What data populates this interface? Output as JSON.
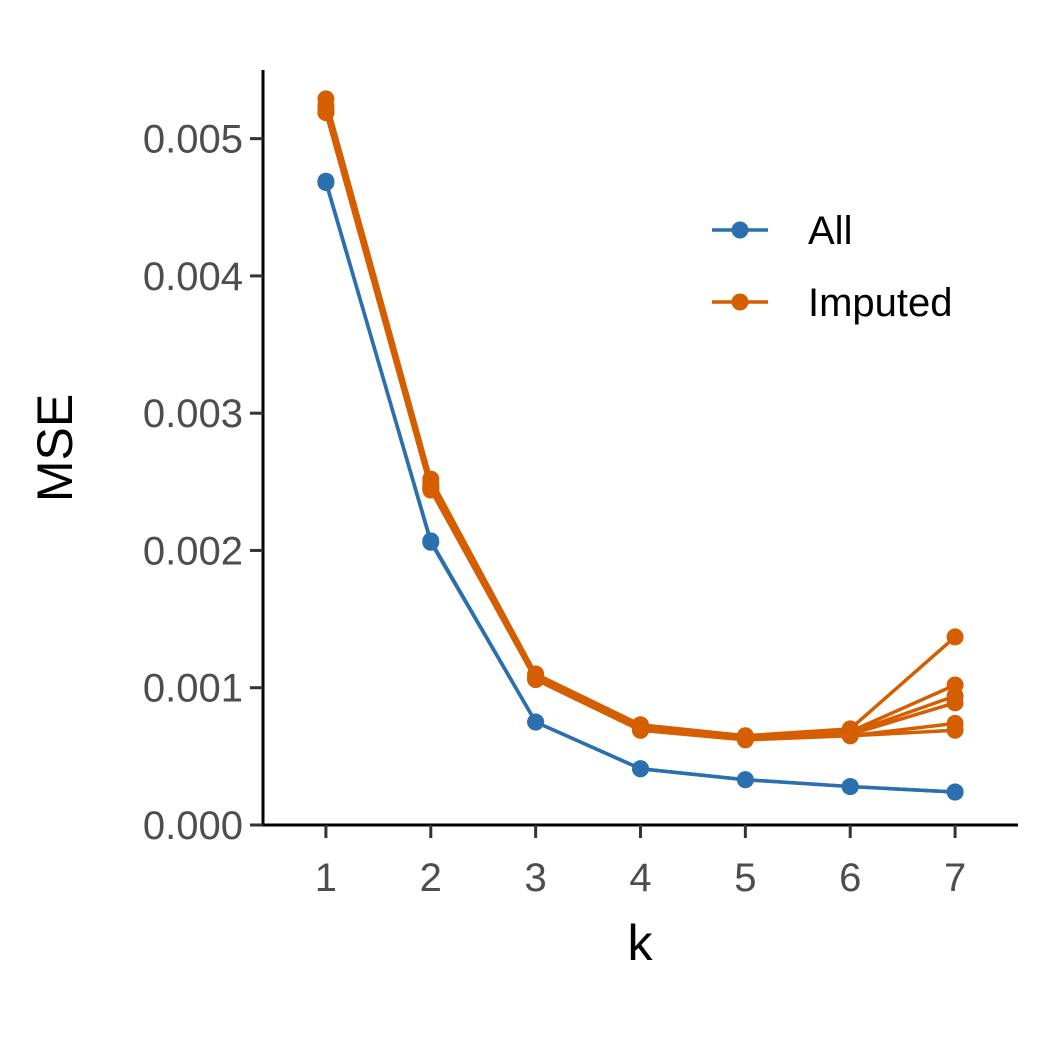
{
  "chart_data": {
    "type": "line",
    "xlabel": "k",
    "ylabel": "MSE",
    "x": [
      1,
      2,
      3,
      4,
      5,
      6,
      7
    ],
    "xlim": [
      0.4,
      7.6
    ],
    "ylim": [
      0,
      0.0055
    ],
    "y_ticks": [
      "0.000",
      "0.001",
      "0.002",
      "0.003",
      "0.004",
      "0.005"
    ],
    "y_tick_values": [
      0,
      0.001,
      0.002,
      0.003,
      0.004,
      0.005
    ],
    "x_ticks": [
      "1",
      "2",
      "3",
      "4",
      "5",
      "6",
      "7"
    ],
    "grid": false,
    "legend_position": "top-right",
    "series": [
      {
        "name": "All",
        "group": "All",
        "color": "#2b6fae",
        "values": [
          0.00468,
          0.00207,
          0.00075,
          0.00041,
          0.00033,
          0.00028,
          0.00024
        ]
      },
      {
        "name": "All",
        "group": "All",
        "color": "#2b6fae",
        "values": [
          0.00469,
          0.00206,
          0.00075,
          0.00041,
          0.00033,
          0.00028,
          0.00024
        ]
      },
      {
        "name": "Imputed",
        "group": "Imputed",
        "color": "#d55e00",
        "values": [
          0.00529,
          0.00252,
          0.0011,
          0.00073,
          0.00065,
          0.0007,
          0.00137
        ]
      },
      {
        "name": "Imputed",
        "group": "Imputed",
        "color": "#d55e00",
        "values": [
          0.00524,
          0.00249,
          0.00109,
          0.00072,
          0.00064,
          0.00068,
          0.00102
        ]
      },
      {
        "name": "Imputed",
        "group": "Imputed",
        "color": "#d55e00",
        "values": [
          0.00521,
          0.00247,
          0.00108,
          0.00071,
          0.00064,
          0.00067,
          0.00094
        ]
      },
      {
        "name": "Imputed",
        "group": "Imputed",
        "color": "#d55e00",
        "values": [
          0.0052,
          0.00246,
          0.00107,
          0.0007,
          0.00063,
          0.00066,
          0.00089
        ]
      },
      {
        "name": "Imputed",
        "group": "Imputed",
        "color": "#d55e00",
        "values": [
          0.00519,
          0.00245,
          0.00106,
          0.00069,
          0.00063,
          0.00065,
          0.00074
        ]
      },
      {
        "name": "Imputed",
        "group": "Imputed",
        "color": "#d55e00",
        "values": [
          0.00519,
          0.00244,
          0.00106,
          0.00069,
          0.00062,
          0.00065,
          0.00069
        ]
      }
    ],
    "legend": [
      {
        "label": "All",
        "color": "#2b6fae"
      },
      {
        "label": "Imputed",
        "color": "#d55e00"
      }
    ]
  }
}
